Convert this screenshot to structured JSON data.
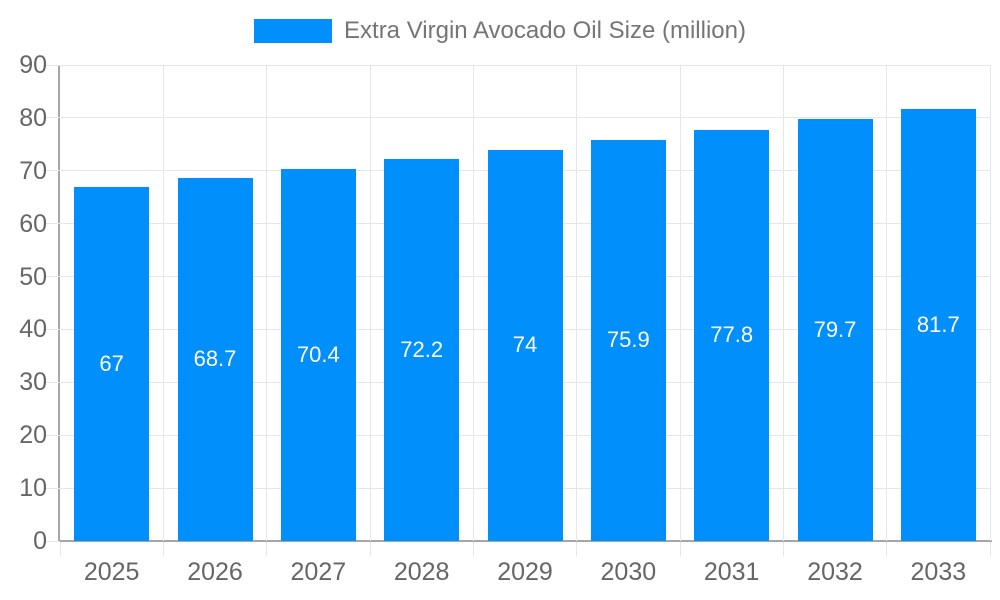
{
  "legend": {
    "label": "Extra Virgin Avocado Oil Size (million)"
  },
  "chart_data": {
    "type": "bar",
    "title": "Extra Virgin Avocado Oil Size (million)",
    "series_name": "Extra Virgin Avocado Oil Size (million)",
    "categories": [
      "2025",
      "2026",
      "2027",
      "2028",
      "2029",
      "2030",
      "2031",
      "2032",
      "2033"
    ],
    "values": [
      67,
      68.7,
      70.4,
      72.2,
      74,
      75.9,
      77.8,
      79.7,
      81.7
    ],
    "xlabel": "",
    "ylabel": "",
    "ylim": [
      0,
      90
    ],
    "yticks": [
      0,
      10,
      20,
      30,
      40,
      50,
      60,
      70,
      80,
      90
    ],
    "grid": true,
    "legend_position": "top",
    "bar_labels_inside": true,
    "colors": {
      "bar": "#008FFB",
      "bar_label": "#FFFFFF",
      "grid": "#E6E6E6",
      "axis": "#A6A6A6",
      "axis_label": "#666666",
      "legend_text": "#757575"
    }
  }
}
